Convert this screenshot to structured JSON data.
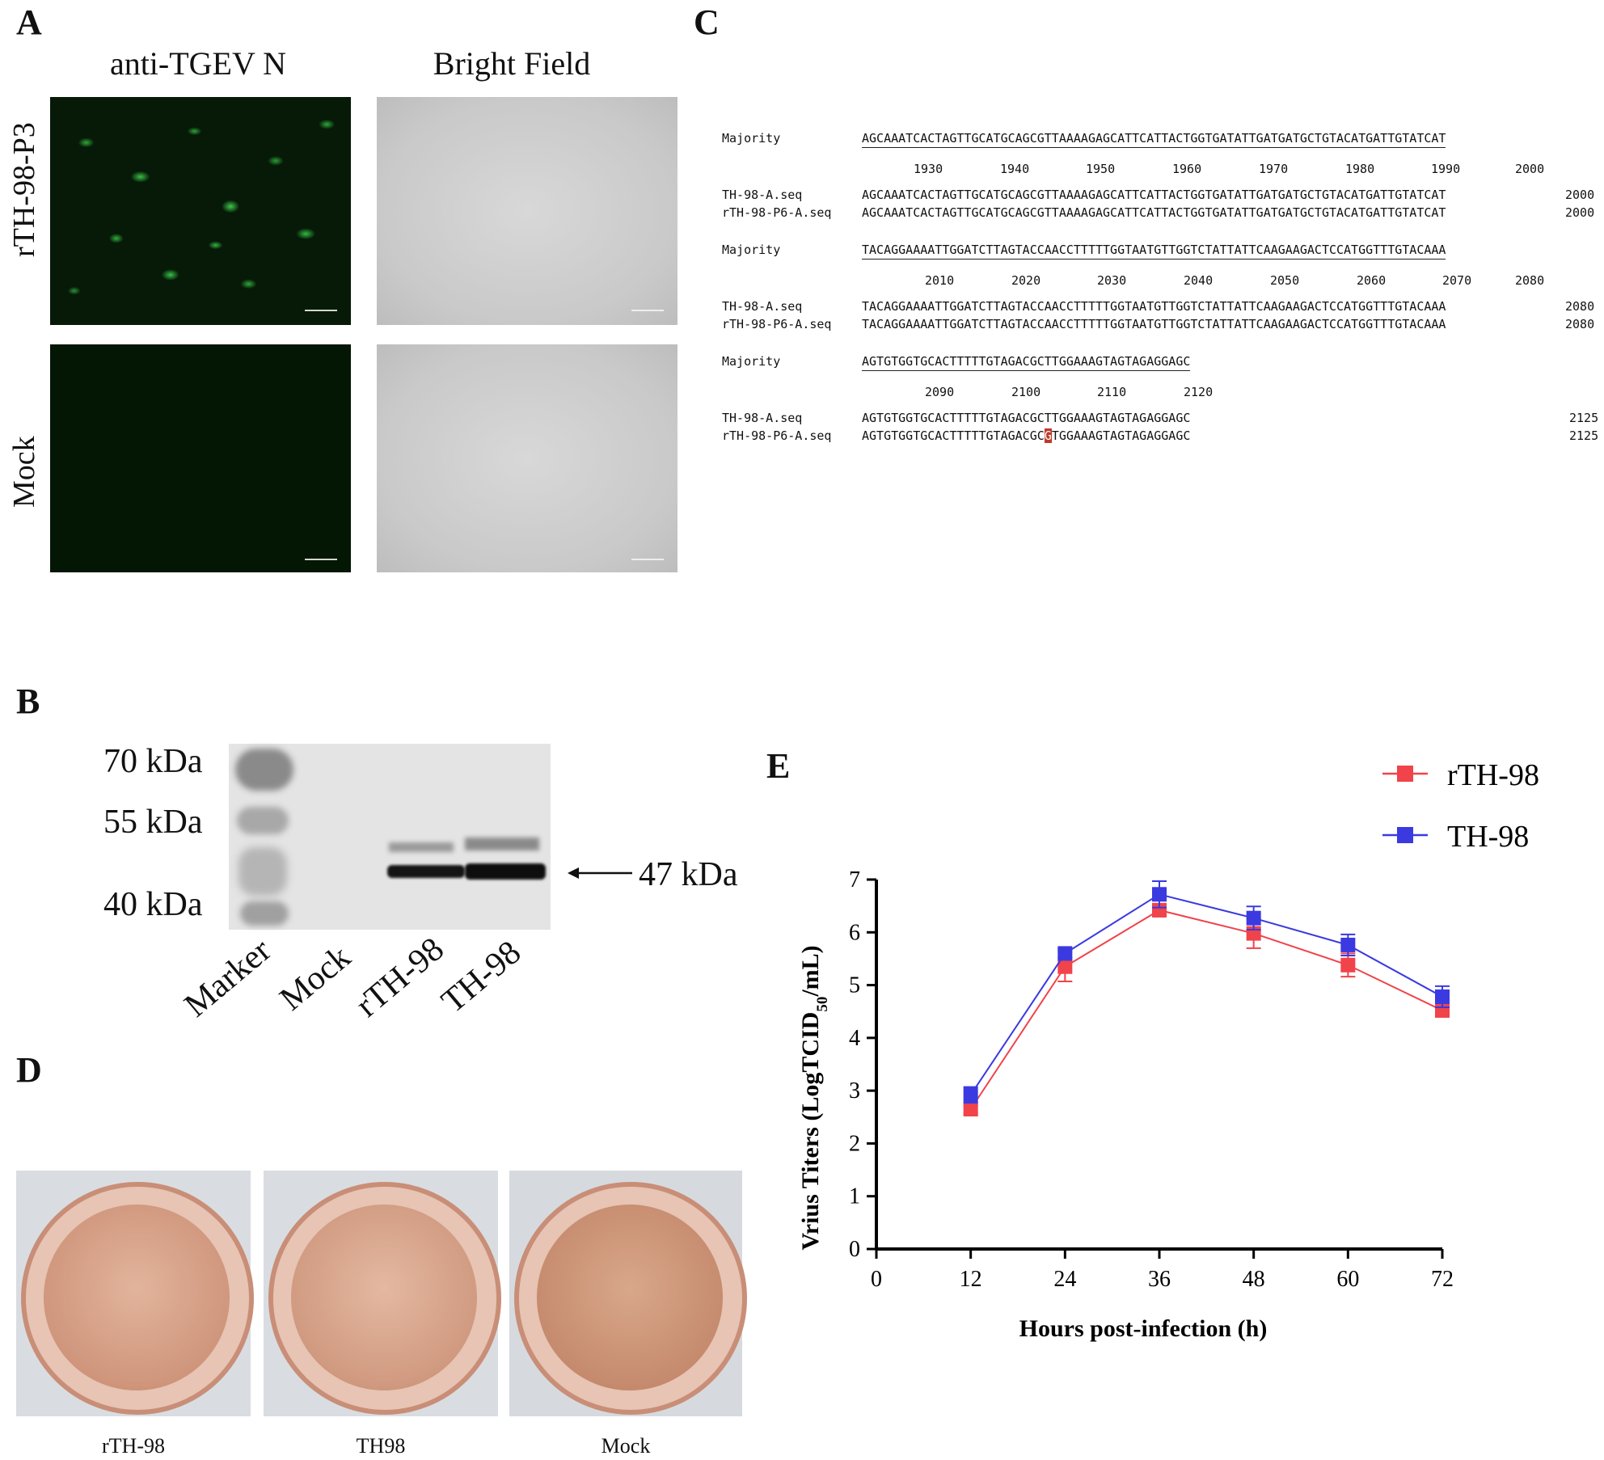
{
  "panelA": {
    "letter": "A",
    "col_titles": [
      "anti-TGEV N",
      "Bright Field"
    ],
    "row_labels": [
      "rTH-98-P3",
      "Mock"
    ]
  },
  "panelB": {
    "letter": "B",
    "marker_labels": [
      "70 kDa",
      "55 kDa",
      "40 kDa"
    ],
    "band_label": "47 kDa",
    "lane_labels": [
      "Marker",
      "Mock",
      "rTH-98",
      "TH-98"
    ]
  },
  "panelC": {
    "letter": "C",
    "blocks": [
      {
        "majority_label": "Majority",
        "majority": "AGCAAATCACTAGTTGCATGCAGCGTTAAAAGAGCATTCATTACTGGTGATATTGATGATGCTGTACATGATTGTATCAT",
        "ruler": [
          "1930",
          "1940",
          "1950",
          "1960",
          "1970",
          "1980",
          "1990",
          "2000"
        ],
        "rows": [
          {
            "name": "TH-98-A.seq",
            "seq": "AGCAAATCACTAGTTGCATGCAGCGTTAAAAGAGCATTCATTACTGGTGATATTGATGATGCTGTACATGATTGTATCAT",
            "pos": "2000"
          },
          {
            "name": "rTH-98-P6-A.seq",
            "seq": "AGCAAATCACTAGTTGCATGCAGCGTTAAAAGAGCATTCATTACTGGTGATATTGATGATGCTGTACATGATTGTATCAT",
            "pos": "2000"
          }
        ]
      },
      {
        "majority_label": "Majority",
        "majority": "TACAGGAAAATTGGATCTTAGTACCAACCTTTTTGGTAATGTTGGTCTATTATTCAAGAAGACTCCATGGTTTGTACAAA",
        "ruler": [
          "2010",
          "2020",
          "2030",
          "2040",
          "2050",
          "2060",
          "2070",
          "2080"
        ],
        "rows": [
          {
            "name": "TH-98-A.seq",
            "seq": "TACAGGAAAATTGGATCTTAGTACCAACCTTTTTGGTAATGTTGGTCTATTATTCAAGAAGACTCCATGGTTTGTACAAA",
            "pos": "2080"
          },
          {
            "name": "rTH-98-P6-A.seq",
            "seq": "TACAGGAAAATTGGATCTTAGTACCAACCTTTTTGGTAATGTTGGTCTATTATTCAAGAAGACTCCATGGTTTGTACAAA",
            "pos": "2080"
          }
        ]
      },
      {
        "majority_label": "Majority",
        "majority": "AGTGTGGTGCACTTTTTGTAGACGCTTGGAAAGTAGTAGAGGAGC",
        "ruler": [
          "2090",
          "2100",
          "2110",
          "2120"
        ],
        "rows": [
          {
            "name": "TH-98-A.seq",
            "seq": "AGTGTGGTGCACTTTTTGTAGACGCTTGGAAAGTAGTAGAGGAGC",
            "pos": "2125"
          },
          {
            "name": "rTH-98-P6-A.seq",
            "seq_pre": "AGTGTGGTGCACTTTTTGTAGACGC",
            "seq_mut": "G",
            "seq_post": "TGGAAAGTAGTAGAGGAGC",
            "pos": "2125"
          }
        ]
      }
    ]
  },
  "panelD": {
    "letter": "D",
    "well_labels": [
      "rTH-98",
      "TH98",
      "Mock"
    ]
  },
  "panelE": {
    "letter": "E"
  },
  "chart_data": {
    "type": "line",
    "xlabel": "Hours post-infection (h)",
    "ylabel_parts": [
      "Vrius Titers (LogTCID",
      "50",
      "/mL)"
    ],
    "x_ticks": [
      "0",
      "12",
      "24",
      "36",
      "48",
      "60",
      "72"
    ],
    "y_ticks": [
      "0",
      "1",
      "2",
      "3",
      "4",
      "5",
      "6",
      "7"
    ],
    "xlim": [
      0,
      72
    ],
    "ylim": [
      0,
      7
    ],
    "legend_position": "top-right",
    "series": [
      {
        "name": "rTH-98",
        "color": "#f0434a",
        "x": [
          12,
          24,
          36,
          48,
          60,
          72
        ],
        "y": [
          2.65,
          5.35,
          6.42,
          5.98,
          5.38,
          4.52
        ],
        "err": [
          0.08,
          0.28,
          0.12,
          0.28,
          0.22,
          0.12
        ]
      },
      {
        "name": "TH-98",
        "color": "#3a3ae0",
        "x": [
          12,
          24,
          36,
          48,
          60,
          72
        ],
        "y": [
          2.92,
          5.6,
          6.72,
          6.27,
          5.76,
          4.78
        ],
        "err": [
          0.15,
          0.08,
          0.25,
          0.22,
          0.2,
          0.2
        ]
      }
    ]
  }
}
